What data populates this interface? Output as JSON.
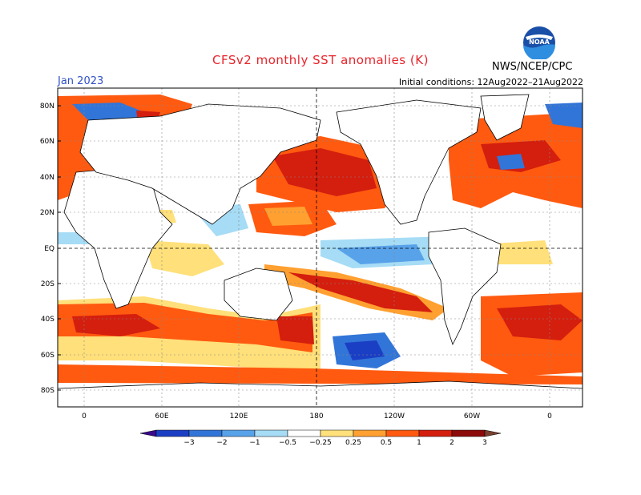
{
  "header": {
    "title": "CFSv2 monthly SST anomalies (K)",
    "month": "Jan 2023",
    "initial_conditions": "Initial conditions: 12Aug2022–21Aug2022",
    "agency": "NWS/NCEP/CPC",
    "logo_text": "NOAA"
  },
  "axes": {
    "lat_labels": [
      "80N",
      "60N",
      "40N",
      "20N",
      "EQ",
      "20S",
      "40S",
      "60S",
      "80S"
    ],
    "lon_labels": [
      "0",
      "60E",
      "120E",
      "180",
      "120W",
      "60W",
      "0"
    ]
  },
  "colorbar": {
    "labels": [
      "−3",
      "−2",
      "−1",
      "−0.5",
      "−0.25",
      "0.25",
      "0.5",
      "1",
      "2",
      "3"
    ],
    "colors": [
      "#3a0a8c",
      "#1b3fc4",
      "#3275d8",
      "#58a2ea",
      "#a6dcf5",
      "#ffffff",
      "#ffe07a",
      "#ffa030",
      "#ff5a10",
      "#d41e0e",
      "#8c0a0a",
      "#7a4030"
    ]
  },
  "legend_colors": {
    "deep_blue": "#1b3fc4",
    "blue": "#3275d8",
    "light_blue": "#a6dcf5",
    "yellow": "#ffe07a",
    "orange": "#ff5a10",
    "red": "#d41e0e",
    "dark_red": "#8c0a0a"
  }
}
